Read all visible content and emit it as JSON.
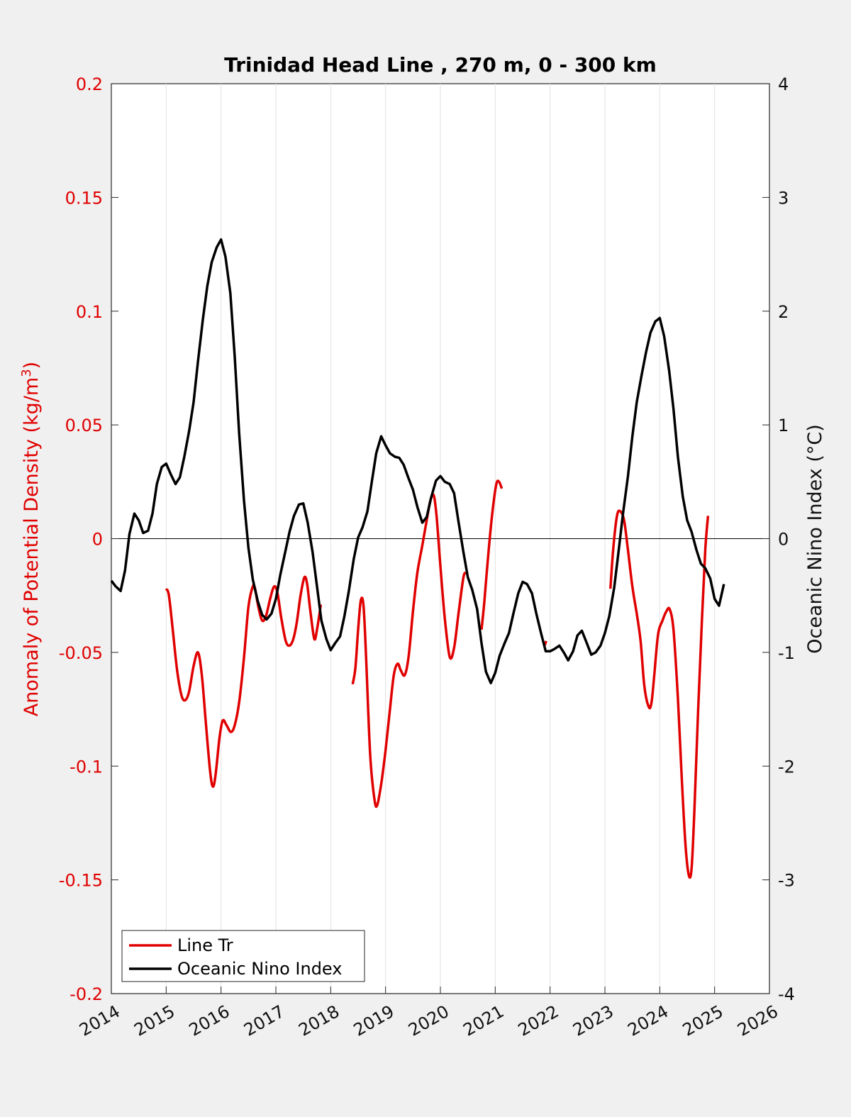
{
  "chart_data": {
    "type": "line",
    "title": "Trinidad Head Line , 270 m, 0 - 300 km",
    "ylabel_left": "Anomaly of Potential Density (kg/m",
    "ylabel_left_sup": "3",
    "ylabel_left_close": ")",
    "ylabel_right": "Oceanic Nino Index (°C)",
    "xlim": [
      2014,
      2026
    ],
    "ylim_left": [
      -0.2,
      0.2
    ],
    "ylim_right": [
      -4,
      4
    ],
    "xticks": [
      "2014",
      "2015",
      "2016",
      "2017",
      "2018",
      "2019",
      "2020",
      "2021",
      "2022",
      "2023",
      "2024",
      "2025",
      "2026"
    ],
    "yticks_left": [
      "0.2",
      "0.15",
      "0.1",
      "0.05",
      "0",
      "-0.05",
      "-0.1",
      "-0.15",
      "-0.2"
    ],
    "yticks_right": [
      "4",
      "3",
      "2",
      "1",
      "0",
      "-1",
      "-2",
      "-3",
      "-4"
    ],
    "grid": "vertical",
    "legend_position": "bottom-left",
    "colors": {
      "line_tr": "#e00000",
      "oni": "#000000"
    },
    "series": [
      {
        "name": "Line Tr",
        "axis": "left",
        "segments": [
          [
            [
              2015.0,
              -0.022
            ],
            [
              2015.05,
              -0.025
            ],
            [
              2015.12,
              -0.04
            ],
            [
              2015.2,
              -0.058
            ],
            [
              2015.28,
              -0.069
            ],
            [
              2015.35,
              -0.071
            ],
            [
              2015.42,
              -0.067
            ],
            [
              2015.5,
              -0.056
            ],
            [
              2015.58,
              -0.05
            ],
            [
              2015.65,
              -0.06
            ],
            [
              2015.72,
              -0.08
            ],
            [
              2015.8,
              -0.102
            ],
            [
              2015.85,
              -0.109
            ],
            [
              2015.9,
              -0.104
            ],
            [
              2015.97,
              -0.088
            ],
            [
              2016.03,
              -0.08
            ],
            [
              2016.1,
              -0.082
            ],
            [
              2016.18,
              -0.085
            ],
            [
              2016.25,
              -0.082
            ],
            [
              2016.33,
              -0.072
            ],
            [
              2016.42,
              -0.052
            ],
            [
              2016.5,
              -0.03
            ],
            [
              2016.58,
              -0.021
            ],
            [
              2016.62,
              -0.022
            ],
            [
              2016.68,
              -0.03
            ],
            [
              2016.75,
              -0.036
            ],
            [
              2016.82,
              -0.034
            ],
            [
              2016.9,
              -0.026
            ],
            [
              2016.97,
              -0.021
            ],
            [
              2017.03,
              -0.024
            ],
            [
              2017.1,
              -0.035
            ],
            [
              2017.18,
              -0.045
            ],
            [
              2017.25,
              -0.047
            ],
            [
              2017.32,
              -0.044
            ],
            [
              2017.38,
              -0.037
            ],
            [
              2017.45,
              -0.025
            ],
            [
              2017.52,
              -0.017
            ],
            [
              2017.57,
              -0.02
            ],
            [
              2017.63,
              -0.032
            ],
            [
              2017.7,
              -0.044
            ],
            [
              2017.75,
              -0.04
            ],
            [
              2017.82,
              -0.029
            ]
          ],
          [
            [
              2018.4,
              -0.064
            ],
            [
              2018.45,
              -0.057
            ],
            [
              2018.5,
              -0.04
            ],
            [
              2018.55,
              -0.027
            ],
            [
              2018.6,
              -0.03
            ],
            [
              2018.65,
              -0.055
            ],
            [
              2018.72,
              -0.095
            ],
            [
              2018.8,
              -0.115
            ],
            [
              2018.85,
              -0.117
            ],
            [
              2018.92,
              -0.108
            ],
            [
              2019.0,
              -0.093
            ],
            [
              2019.08,
              -0.075
            ],
            [
              2019.15,
              -0.06
            ],
            [
              2019.22,
              -0.055
            ],
            [
              2019.28,
              -0.058
            ],
            [
              2019.35,
              -0.06
            ],
            [
              2019.42,
              -0.052
            ],
            [
              2019.5,
              -0.032
            ],
            [
              2019.58,
              -0.015
            ],
            [
              2019.67,
              -0.003
            ],
            [
              2019.75,
              0.008
            ],
            [
              2019.82,
              0.017
            ],
            [
              2019.88,
              0.019
            ],
            [
              2019.93,
              0.01
            ],
            [
              2020.0,
              -0.012
            ],
            [
              2020.08,
              -0.035
            ],
            [
              2020.17,
              -0.052
            ],
            [
              2020.25,
              -0.048
            ],
            [
              2020.33,
              -0.033
            ],
            [
              2020.42,
              -0.017
            ],
            [
              2020.47,
              -0.015
            ]
          ],
          [
            [
              2020.75,
              -0.04
            ],
            [
              2020.8,
              -0.028
            ],
            [
              2020.88,
              -0.005
            ],
            [
              2020.95,
              0.012
            ],
            [
              2021.02,
              0.024
            ],
            [
              2021.07,
              0.025
            ],
            [
              2021.12,
              0.022
            ]
          ],
          [
            [
              2021.9,
              -0.047
            ],
            [
              2021.93,
              -0.045
            ]
          ],
          [
            [
              2023.1,
              -0.022
            ],
            [
              2023.15,
              -0.005
            ],
            [
              2023.22,
              0.01
            ],
            [
              2023.28,
              0.012
            ],
            [
              2023.35,
              0.008
            ],
            [
              2023.42,
              -0.005
            ],
            [
              2023.5,
              -0.021
            ],
            [
              2023.58,
              -0.033
            ],
            [
              2023.65,
              -0.045
            ],
            [
              2023.72,
              -0.065
            ],
            [
              2023.8,
              -0.074
            ],
            [
              2023.85,
              -0.072
            ],
            [
              2023.9,
              -0.06
            ],
            [
              2023.97,
              -0.042
            ],
            [
              2024.05,
              -0.036
            ],
            [
              2024.12,
              -0.032
            ],
            [
              2024.18,
              -0.031
            ],
            [
              2024.25,
              -0.04
            ],
            [
              2024.33,
              -0.07
            ],
            [
              2024.4,
              -0.105
            ],
            [
              2024.47,
              -0.135
            ],
            [
              2024.53,
              -0.148
            ],
            [
              2024.58,
              -0.145
            ],
            [
              2024.63,
              -0.12
            ],
            [
              2024.7,
              -0.075
            ],
            [
              2024.77,
              -0.035
            ],
            [
              2024.83,
              -0.005
            ],
            [
              2024.88,
              0.01
            ]
          ]
        ]
      },
      {
        "name": "Oceanic Nino Index",
        "axis": "right",
        "points": [
          [
            2014.0,
            -0.37
          ],
          [
            2014.08,
            -0.42
          ],
          [
            2014.17,
            -0.46
          ],
          [
            2014.25,
            -0.28
          ],
          [
            2014.33,
            0.04
          ],
          [
            2014.42,
            0.22
          ],
          [
            2014.5,
            0.16
          ],
          [
            2014.58,
            0.05
          ],
          [
            2014.67,
            0.07
          ],
          [
            2014.75,
            0.22
          ],
          [
            2014.83,
            0.48
          ],
          [
            2014.92,
            0.63
          ],
          [
            2015.0,
            0.66
          ],
          [
            2015.08,
            0.57
          ],
          [
            2015.17,
            0.48
          ],
          [
            2015.25,
            0.54
          ],
          [
            2015.33,
            0.72
          ],
          [
            2015.42,
            0.95
          ],
          [
            2015.5,
            1.2
          ],
          [
            2015.58,
            1.56
          ],
          [
            2015.67,
            1.93
          ],
          [
            2015.75,
            2.22
          ],
          [
            2015.83,
            2.43
          ],
          [
            2015.92,
            2.56
          ],
          [
            2016.0,
            2.63
          ],
          [
            2016.08,
            2.48
          ],
          [
            2016.17,
            2.16
          ],
          [
            2016.25,
            1.6
          ],
          [
            2016.33,
            0.93
          ],
          [
            2016.42,
            0.33
          ],
          [
            2016.5,
            -0.08
          ],
          [
            2016.58,
            -0.36
          ],
          [
            2016.67,
            -0.55
          ],
          [
            2016.75,
            -0.67
          ],
          [
            2016.83,
            -0.71
          ],
          [
            2016.92,
            -0.66
          ],
          [
            2017.0,
            -0.53
          ],
          [
            2017.08,
            -0.32
          ],
          [
            2017.17,
            -0.12
          ],
          [
            2017.25,
            0.06
          ],
          [
            2017.33,
            0.2
          ],
          [
            2017.42,
            0.3
          ],
          [
            2017.5,
            0.31
          ],
          [
            2017.58,
            0.14
          ],
          [
            2017.67,
            -0.12
          ],
          [
            2017.75,
            -0.42
          ],
          [
            2017.83,
            -0.72
          ],
          [
            2017.92,
            -0.88
          ],
          [
            2018.0,
            -0.98
          ],
          [
            2018.08,
            -0.92
          ],
          [
            2018.17,
            -0.86
          ],
          [
            2018.25,
            -0.68
          ],
          [
            2018.33,
            -0.46
          ],
          [
            2018.42,
            -0.18
          ],
          [
            2018.5,
            0.01
          ],
          [
            2018.58,
            0.1
          ],
          [
            2018.67,
            0.24
          ],
          [
            2018.75,
            0.5
          ],
          [
            2018.83,
            0.75
          ],
          [
            2018.92,
            0.9
          ],
          [
            2019.0,
            0.82
          ],
          [
            2019.08,
            0.75
          ],
          [
            2019.17,
            0.72
          ],
          [
            2019.25,
            0.71
          ],
          [
            2019.33,
            0.65
          ],
          [
            2019.42,
            0.53
          ],
          [
            2019.5,
            0.43
          ],
          [
            2019.58,
            0.28
          ],
          [
            2019.67,
            0.14
          ],
          [
            2019.75,
            0.19
          ],
          [
            2019.83,
            0.36
          ],
          [
            2019.92,
            0.51
          ],
          [
            2020.0,
            0.55
          ],
          [
            2020.08,
            0.5
          ],
          [
            2020.17,
            0.48
          ],
          [
            2020.25,
            0.4
          ],
          [
            2020.33,
            0.15
          ],
          [
            2020.42,
            -0.12
          ],
          [
            2020.5,
            -0.34
          ],
          [
            2020.58,
            -0.45
          ],
          [
            2020.67,
            -0.62
          ],
          [
            2020.75,
            -0.92
          ],
          [
            2020.83,
            -1.17
          ],
          [
            2020.92,
            -1.27
          ],
          [
            2021.0,
            -1.18
          ],
          [
            2021.08,
            -1.03
          ],
          [
            2021.17,
            -0.92
          ],
          [
            2021.25,
            -0.83
          ],
          [
            2021.33,
            -0.66
          ],
          [
            2021.42,
            -0.48
          ],
          [
            2021.5,
            -0.38
          ],
          [
            2021.58,
            -0.4
          ],
          [
            2021.67,
            -0.48
          ],
          [
            2021.75,
            -0.66
          ],
          [
            2021.83,
            -0.82
          ],
          [
            2021.92,
            -0.99
          ],
          [
            2022.0,
            -0.99
          ],
          [
            2022.08,
            -0.97
          ],
          [
            2022.17,
            -0.94
          ],
          [
            2022.25,
            -1.0
          ],
          [
            2022.33,
            -1.07
          ],
          [
            2022.42,
            -0.99
          ],
          [
            2022.5,
            -0.85
          ],
          [
            2022.58,
            -0.81
          ],
          [
            2022.67,
            -0.92
          ],
          [
            2022.75,
            -1.02
          ],
          [
            2022.83,
            -1.0
          ],
          [
            2022.92,
            -0.94
          ],
          [
            2023.0,
            -0.83
          ],
          [
            2023.08,
            -0.68
          ],
          [
            2023.17,
            -0.43
          ],
          [
            2023.25,
            -0.11
          ],
          [
            2023.33,
            0.22
          ],
          [
            2023.42,
            0.55
          ],
          [
            2023.5,
            0.9
          ],
          [
            2023.58,
            1.2
          ],
          [
            2023.67,
            1.44
          ],
          [
            2023.75,
            1.64
          ],
          [
            2023.83,
            1.81
          ],
          [
            2023.92,
            1.91
          ],
          [
            2024.0,
            1.94
          ],
          [
            2024.08,
            1.78
          ],
          [
            2024.17,
            1.48
          ],
          [
            2024.25,
            1.14
          ],
          [
            2024.33,
            0.72
          ],
          [
            2024.42,
            0.37
          ],
          [
            2024.5,
            0.16
          ],
          [
            2024.58,
            0.06
          ],
          [
            2024.67,
            -0.1
          ],
          [
            2024.75,
            -0.22
          ],
          [
            2024.83,
            -0.26
          ],
          [
            2024.92,
            -0.35
          ],
          [
            2025.0,
            -0.53
          ],
          [
            2025.08,
            -0.59
          ],
          [
            2025.17,
            -0.4
          ]
        ]
      }
    ]
  }
}
